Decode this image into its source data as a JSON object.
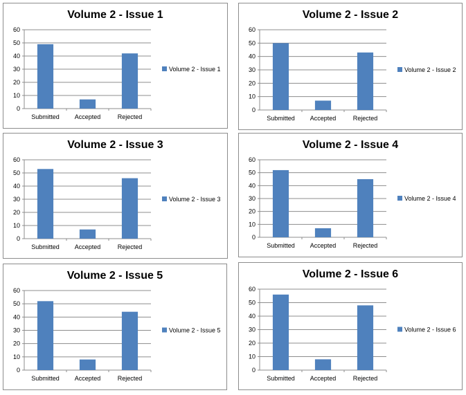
{
  "colors": {
    "bar": "#4f81bd",
    "grid": "#8c8c8c",
    "border": "#8c8c8c"
  },
  "chart_data": [
    {
      "type": "bar",
      "title": "Volume 2 - Issue 1",
      "categories": [
        "Submitted",
        "Accepted",
        "Rejected"
      ],
      "series": [
        {
          "name": "Volume 2 - Issue 1",
          "values": [
            49,
            7,
            42
          ]
        }
      ],
      "ylim": [
        0,
        60
      ],
      "yticks": [
        0,
        10,
        20,
        30,
        40,
        50,
        60
      ],
      "grid": true,
      "legend": "right"
    },
    {
      "type": "bar",
      "title": "Volume 2 - Issue 2",
      "categories": [
        "Submitted",
        "Accepted",
        "Rejected"
      ],
      "series": [
        {
          "name": "Volume 2 - Issue 2",
          "values": [
            50,
            7,
            43
          ]
        }
      ],
      "ylim": [
        0,
        60
      ],
      "yticks": [
        0,
        10,
        20,
        30,
        40,
        50,
        60
      ],
      "grid": true,
      "legend": "right"
    },
    {
      "type": "bar",
      "title": "Volume 2 - Issue 3",
      "categories": [
        "Submitted",
        "Accepted",
        "Rejected"
      ],
      "series": [
        {
          "name": "Volume 2 - Issue 3",
          "values": [
            53,
            7,
            46
          ]
        }
      ],
      "ylim": [
        0,
        60
      ],
      "yticks": [
        0,
        10,
        20,
        30,
        40,
        50,
        60
      ],
      "grid": true,
      "legend": "right"
    },
    {
      "type": "bar",
      "title": "Volume 2 - Issue 4",
      "categories": [
        "Submitted",
        "Accepted",
        "Rejected"
      ],
      "series": [
        {
          "name": "Volume 2 - Issue 4",
          "values": [
            52,
            7,
            45
          ]
        }
      ],
      "ylim": [
        0,
        60
      ],
      "yticks": [
        0,
        10,
        20,
        30,
        40,
        50,
        60
      ],
      "grid": true,
      "legend": "right"
    },
    {
      "type": "bar",
      "title": "Volume 2 - Issue 5",
      "categories": [
        "Submitted",
        "Accepted",
        "Rejected"
      ],
      "series": [
        {
          "name": "Volume 2 - Issue 5",
          "values": [
            52,
            8,
            44
          ]
        }
      ],
      "ylim": [
        0,
        60
      ],
      "yticks": [
        0,
        10,
        20,
        30,
        40,
        50,
        60
      ],
      "grid": true,
      "legend": "right"
    },
    {
      "type": "bar",
      "title": "Volume 2 - Issue 6",
      "categories": [
        "Submitted",
        "Accepted",
        "Rejected"
      ],
      "series": [
        {
          "name": "Volume 2 - Issue 6",
          "values": [
            56,
            8,
            48
          ]
        }
      ],
      "ylim": [
        0,
        60
      ],
      "yticks": [
        0,
        10,
        20,
        30,
        40,
        50,
        60
      ],
      "grid": true,
      "legend": "right"
    }
  ]
}
